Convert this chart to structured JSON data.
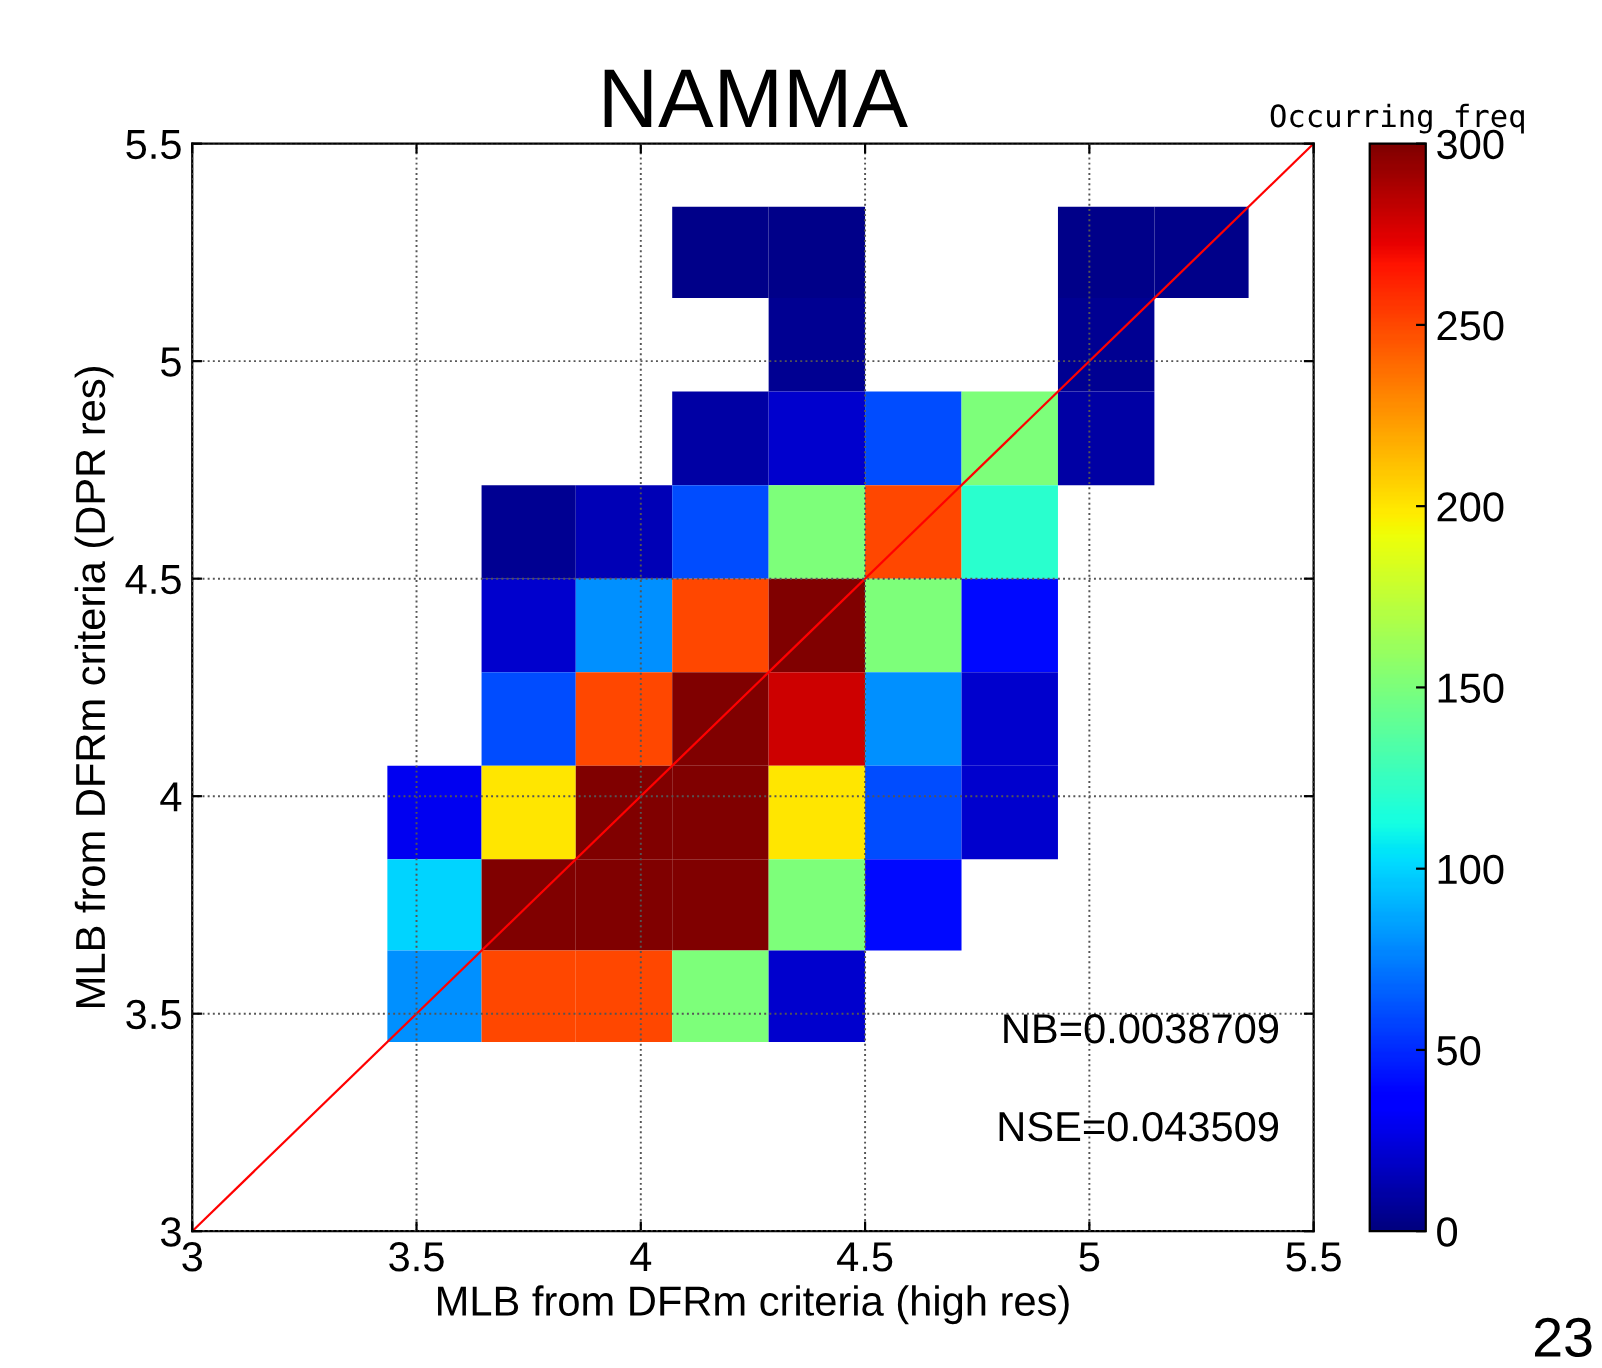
{
  "chart_data": {
    "type": "heatmap",
    "title": "NAMMA",
    "xlabel": "MLB from DFRm criteria (high res)",
    "ylabel": "MLB from DFRm criteria (DPR res)",
    "clabel": "Occurring freq",
    "x": [
      3.54,
      3.75,
      3.96,
      4.18,
      4.39,
      4.61,
      4.82,
      5.04,
      5.25
    ],
    "y": [
      5.25,
      5.04,
      4.82,
      4.61,
      4.39,
      4.18,
      3.96,
      3.75,
      3.54
    ],
    "cells": [
      [
        null,
        null,
        null,
        3,
        3,
        null,
        null,
        3,
        3
      ],
      [
        null,
        null,
        null,
        null,
        5,
        null,
        null,
        5,
        null
      ],
      [
        null,
        null,
        null,
        10,
        20,
        60,
        150,
        10,
        null
      ],
      [
        null,
        5,
        15,
        60,
        150,
        250,
        120,
        null,
        null
      ],
      [
        null,
        20,
        80,
        250,
        300,
        150,
        40,
        null,
        null
      ],
      [
        null,
        60,
        250,
        300,
        280,
        80,
        20,
        null,
        null
      ],
      [
        30,
        200,
        300,
        300,
        200,
        60,
        20,
        null,
        null
      ],
      [
        100,
        300,
        300,
        300,
        150,
        40,
        null,
        null,
        null
      ],
      [
        80,
        250,
        250,
        150,
        20,
        null,
        null,
        null,
        null
      ]
    ],
    "series": [
      {
        "type": "line",
        "x": [
          3,
          5.5
        ],
        "values": [
          3,
          5.5
        ],
        "color": "#ff0000"
      }
    ],
    "clim": [
      0,
      300
    ],
    "cticks": [
      0,
      50,
      100,
      150,
      200,
      250,
      300
    ],
    "xlim": [
      3,
      5.5
    ],
    "ylim": [
      3,
      5.5
    ],
    "xticks": [
      3,
      3.5,
      4,
      4.5,
      5,
      5.5
    ],
    "yticks": [
      3,
      3.5,
      4,
      4.5,
      5,
      5.5
    ],
    "grid": true,
    "annotations": [
      "NB=0.0038709",
      "NSE=0.043509",
      "23"
    ]
  }
}
